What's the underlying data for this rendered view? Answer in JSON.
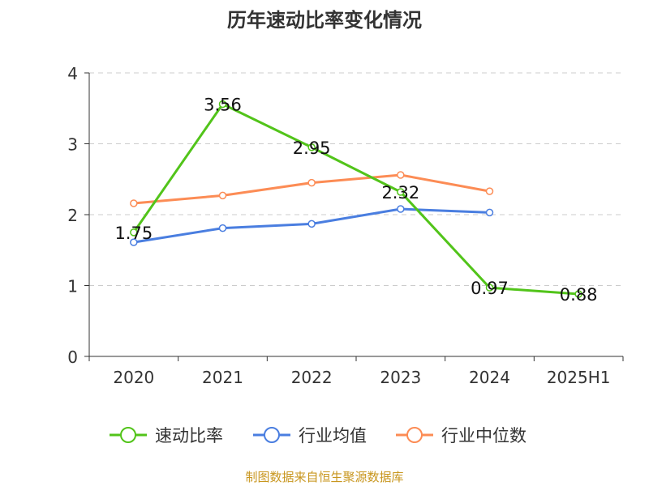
{
  "chart_data": {
    "type": "line",
    "title": "历年速动比率变化情况",
    "categories": [
      "2020",
      "2021",
      "2022",
      "2023",
      "2024",
      "2025H1"
    ],
    "ylim": [
      0,
      4
    ],
    "yticks": [
      0,
      1,
      2,
      3,
      4
    ],
    "grid": true,
    "legend_placement": "bottom",
    "series": [
      {
        "name": "速动比率",
        "color": "#52c41a",
        "values": [
          1.75,
          3.56,
          2.95,
          2.32,
          0.97,
          0.88
        ],
        "labels": [
          "1.75",
          "3.56",
          "2.95",
          "2.32",
          "0.97",
          "0.88"
        ]
      },
      {
        "name": "行业均值",
        "color": "#4a7ee0",
        "values": [
          1.61,
          1.81,
          1.87,
          2.08,
          2.03,
          null
        ]
      },
      {
        "name": "行业中位数",
        "color": "#fc8c55",
        "values": [
          2.16,
          2.27,
          2.45,
          2.56,
          2.33,
          null
        ]
      }
    ]
  },
  "source": "制图数据来自恒生聚源数据库",
  "source_color": "#c8961e"
}
